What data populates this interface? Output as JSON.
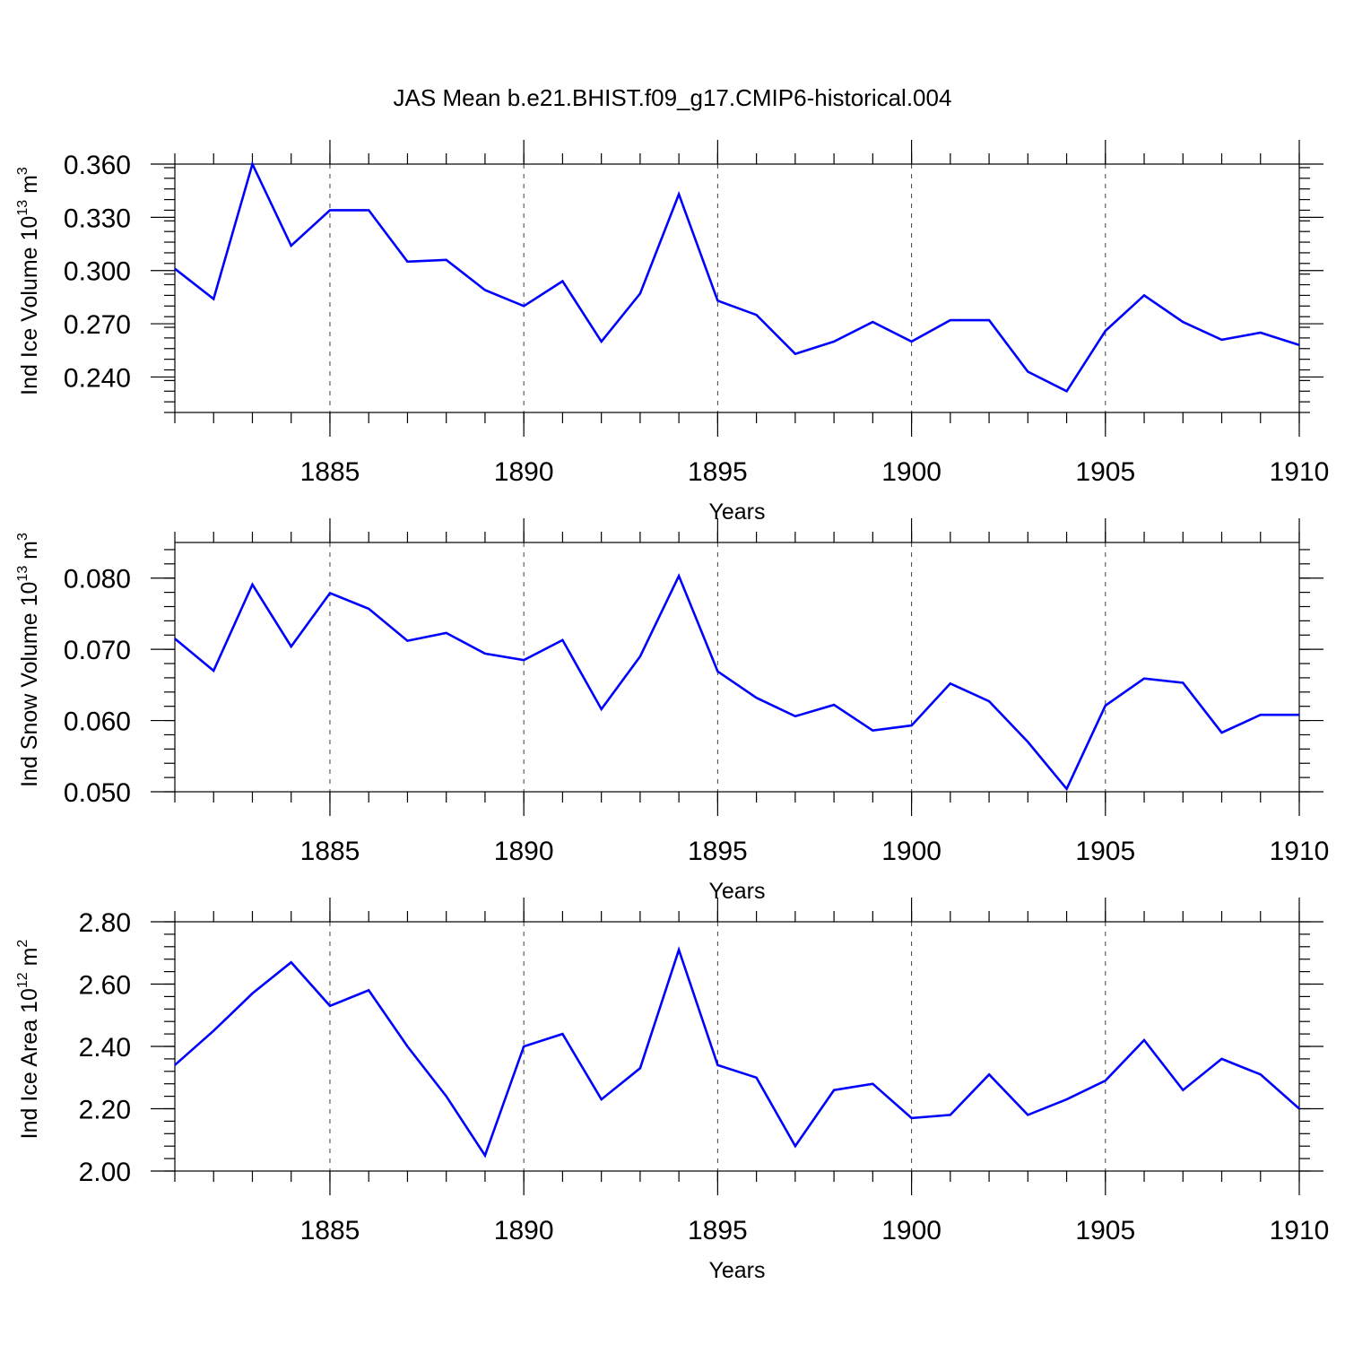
{
  "title": "JAS Mean b.e21.BHIST.f09_g17.CMIP6-historical.004",
  "colors": {
    "series": "#0000ff",
    "axes": "#000000",
    "background": "#ffffff"
  },
  "chart_data": [
    {
      "type": "line",
      "ylabel_main": "Ind Ice Volume 10",
      "ylabel_exp": "13",
      "ylabel_unit": " m",
      "ylabel_unit_exp": "3",
      "xlabel": "Years",
      "xlim": [
        1881,
        1910
      ],
      "ylim": [
        0.22,
        0.36
      ],
      "x_ticks": [
        "1885",
        "1890",
        "1895",
        "1900",
        "1905",
        "1910"
      ],
      "y_ticks": [
        "0.240",
        "0.270",
        "0.300",
        "0.330",
        "0.360"
      ],
      "grid": "dashed vertical at labeled years",
      "x": [
        1881,
        1882,
        1883,
        1884,
        1885,
        1886,
        1887,
        1888,
        1889,
        1890,
        1891,
        1892,
        1893,
        1894,
        1895,
        1896,
        1897,
        1898,
        1899,
        1900,
        1901,
        1902,
        1903,
        1904,
        1905,
        1906,
        1907,
        1908,
        1909,
        1910
      ],
      "values": [
        0.301,
        0.284,
        0.36,
        0.314,
        0.334,
        0.334,
        0.305,
        0.306,
        0.289,
        0.28,
        0.294,
        0.26,
        0.287,
        0.343,
        0.283,
        0.275,
        0.253,
        0.26,
        0.271,
        0.26,
        0.272,
        0.272,
        0.243,
        0.232,
        0.266,
        0.286,
        0.271,
        0.261,
        0.265,
        0.258
      ]
    },
    {
      "type": "line",
      "ylabel_main": "Ind Snow Volume 10",
      "ylabel_exp": "13",
      "ylabel_unit": " m",
      "ylabel_unit_exp": "3",
      "xlabel": "Years",
      "xlim": [
        1881,
        1910
      ],
      "ylim": [
        0.05,
        0.085
      ],
      "x_ticks": [
        "1885",
        "1890",
        "1895",
        "1900",
        "1905",
        "1910"
      ],
      "y_ticks": [
        "0.050",
        "0.060",
        "0.070",
        "0.080"
      ],
      "grid": "dashed vertical at labeled years",
      "x": [
        1881,
        1882,
        1883,
        1884,
        1885,
        1886,
        1887,
        1888,
        1889,
        1890,
        1891,
        1892,
        1893,
        1894,
        1895,
        1896,
        1897,
        1898,
        1899,
        1900,
        1901,
        1902,
        1903,
        1904,
        1905,
        1906,
        1907,
        1908,
        1909,
        1910
      ],
      "values": [
        0.0715,
        0.067,
        0.0791,
        0.0704,
        0.0779,
        0.0757,
        0.0712,
        0.0723,
        0.0694,
        0.0685,
        0.0713,
        0.0616,
        0.069,
        0.0803,
        0.0669,
        0.0632,
        0.0606,
        0.0622,
        0.0586,
        0.0593,
        0.0652,
        0.0627,
        0.057,
        0.0504,
        0.0621,
        0.0659,
        0.0653,
        0.0583,
        0.0608,
        0.0608
      ]
    },
    {
      "type": "line",
      "ylabel_main": "Ind Ice Area 10",
      "ylabel_exp": "12",
      "ylabel_unit": " m",
      "ylabel_unit_exp": "2",
      "xlabel": "Years",
      "xlim": [
        1881,
        1910
      ],
      "ylim": [
        2.0,
        2.8
      ],
      "x_ticks": [
        "1885",
        "1890",
        "1895",
        "1900",
        "1905",
        "1910"
      ],
      "y_ticks": [
        "2.00",
        "2.20",
        "2.40",
        "2.60",
        "2.80"
      ],
      "grid": "dashed vertical at labeled years",
      "x": [
        1881,
        1882,
        1883,
        1884,
        1885,
        1886,
        1887,
        1888,
        1889,
        1890,
        1891,
        1892,
        1893,
        1894,
        1895,
        1896,
        1897,
        1898,
        1899,
        1900,
        1901,
        1902,
        1903,
        1904,
        1905,
        1906,
        1907,
        1908,
        1909,
        1910
      ],
      "values": [
        2.34,
        2.45,
        2.57,
        2.67,
        2.53,
        2.58,
        2.4,
        2.24,
        2.05,
        2.4,
        2.44,
        2.23,
        2.33,
        2.71,
        2.34,
        2.3,
        2.08,
        2.26,
        2.28,
        2.17,
        2.18,
        2.31,
        2.18,
        2.23,
        2.29,
        2.42,
        2.26,
        2.36,
        2.31,
        2.2
      ]
    }
  ]
}
